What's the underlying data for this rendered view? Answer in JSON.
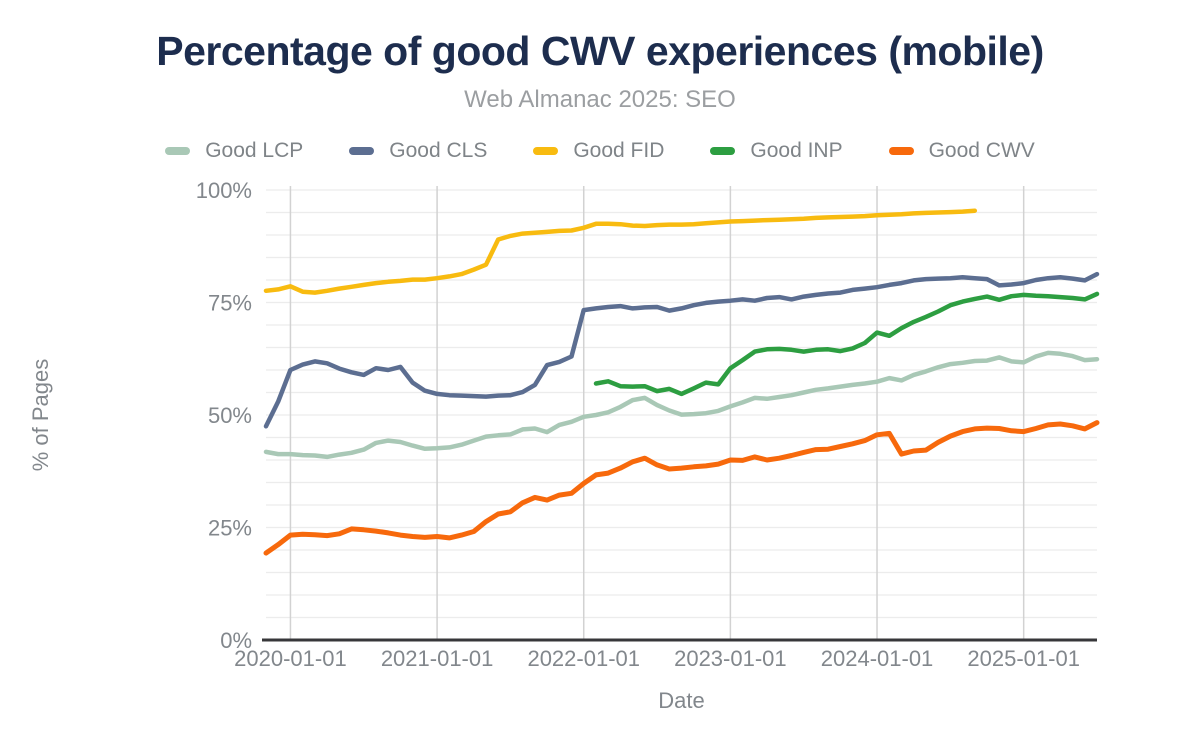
{
  "chart_data": {
    "type": "line",
    "title": "Percentage of good CWV experiences (mobile)",
    "subtitle": "Web Almanac 2025: SEO",
    "xlabel": "Date",
    "ylabel": "% of Pages",
    "ylim": [
      0,
      100
    ],
    "y_ticks": [
      {
        "value": 0,
        "label": "0%"
      },
      {
        "value": 25,
        "label": "25%"
      },
      {
        "value": 50,
        "label": "50%"
      },
      {
        "value": 75,
        "label": "75%"
      },
      {
        "value": 100,
        "label": "100%"
      }
    ],
    "y_minor_gridline_step": 5,
    "x_ticks": [
      {
        "month": "2020-01",
        "label": "2020-01-01"
      },
      {
        "month": "2021-01",
        "label": "2021-01-01"
      },
      {
        "month": "2022-01",
        "label": "2022-01-01"
      },
      {
        "month": "2023-01",
        "label": "2023-01-01"
      },
      {
        "month": "2024-01",
        "label": "2024-01-01"
      },
      {
        "month": "2025-01",
        "label": "2025-01-01"
      }
    ],
    "legend_position": "top",
    "grid": true,
    "months": [
      "2019-11",
      "2019-12",
      "2020-01",
      "2020-02",
      "2020-03",
      "2020-04",
      "2020-05",
      "2020-06",
      "2020-07",
      "2020-08",
      "2020-09",
      "2020-10",
      "2020-11",
      "2020-12",
      "2021-01",
      "2021-02",
      "2021-03",
      "2021-04",
      "2021-05",
      "2021-06",
      "2021-07",
      "2021-08",
      "2021-09",
      "2021-10",
      "2021-11",
      "2021-12",
      "2022-01",
      "2022-02",
      "2022-03",
      "2022-04",
      "2022-05",
      "2022-06",
      "2022-07",
      "2022-08",
      "2022-09",
      "2022-10",
      "2022-11",
      "2022-12",
      "2023-01",
      "2023-02",
      "2023-03",
      "2023-04",
      "2023-05",
      "2023-06",
      "2023-07",
      "2023-08",
      "2023-09",
      "2023-10",
      "2023-11",
      "2023-12",
      "2024-01",
      "2024-02",
      "2024-03",
      "2024-04",
      "2024-05",
      "2024-06",
      "2024-07",
      "2024-08",
      "2024-09",
      "2024-10",
      "2024-11",
      "2024-12",
      "2025-01",
      "2025-02",
      "2025-03",
      "2025-04",
      "2025-05",
      "2025-06",
      "2025-07"
    ],
    "series": [
      {
        "name": "Good LCP",
        "color": "#a9c8b6",
        "values": [
          41.8,
          41.3,
          41.3,
          41.1,
          41.0,
          40.7,
          41.2,
          41.6,
          42.3,
          43.8,
          44.3,
          44.0,
          43.2,
          42.5,
          42.6,
          42.8,
          43.4,
          44.3,
          45.2,
          45.5,
          45.7,
          46.8,
          47.0,
          46.2,
          47.8,
          48.5,
          49.6,
          50.0,
          50.6,
          51.8,
          53.3,
          53.8,
          52.2,
          51.0,
          50.1,
          50.2,
          50.4,
          50.9,
          51.9,
          52.8,
          53.8,
          53.6,
          54.0,
          54.4,
          55.0,
          55.6,
          55.9,
          56.3,
          56.7,
          57.0,
          57.4,
          58.2,
          57.7,
          58.9,
          59.7,
          60.6,
          61.3,
          61.6,
          62.0,
          62.1,
          62.8,
          61.9,
          61.7,
          63.0,
          63.8,
          63.6,
          63.1,
          62.2,
          62.4
        ]
      },
      {
        "name": "Good CLS",
        "color": "#5c6e91",
        "values": [
          47.5,
          53.0,
          60.0,
          61.2,
          61.9,
          61.5,
          60.3,
          59.5,
          58.9,
          60.4,
          60.0,
          60.7,
          57.2,
          55.4,
          54.7,
          54.4,
          54.3,
          54.2,
          54.1,
          54.3,
          54.4,
          55.1,
          56.7,
          61.1,
          61.8,
          63.0,
          73.3,
          73.7,
          74.0,
          74.2,
          73.7,
          73.9,
          74.0,
          73.2,
          73.7,
          74.4,
          74.9,
          75.2,
          75.4,
          75.7,
          75.4,
          76.0,
          76.2,
          75.7,
          76.3,
          76.7,
          77.0,
          77.2,
          77.8,
          78.1,
          78.4,
          78.9,
          79.3,
          79.9,
          80.2,
          80.3,
          80.4,
          80.6,
          80.4,
          80.2,
          78.8,
          79.0,
          79.3,
          80.0,
          80.4,
          80.6,
          80.3,
          79.9,
          81.3
        ]
      },
      {
        "name": "Good FID",
        "color": "#f8bb10",
        "values": [
          77.6,
          77.9,
          78.6,
          77.4,
          77.2,
          77.6,
          78.1,
          78.5,
          78.9,
          79.3,
          79.6,
          79.8,
          80.1,
          80.1,
          80.4,
          80.8,
          81.3,
          82.3,
          83.4,
          89.0,
          89.8,
          90.3,
          90.5,
          90.7,
          90.9,
          91.0,
          91.6,
          92.5,
          92.5,
          92.4,
          92.1,
          92.0,
          92.2,
          92.3,
          92.3,
          92.4,
          92.6,
          92.8,
          93.0,
          93.1,
          93.2,
          93.3,
          93.4,
          93.5,
          93.6,
          93.8,
          93.9,
          94.0,
          94.1,
          94.2,
          94.4,
          94.5,
          94.6,
          94.8,
          94.9,
          95.0,
          95.1,
          95.2,
          95.4,
          null,
          null,
          null,
          null,
          null,
          null,
          null,
          null,
          null,
          null
        ]
      },
      {
        "name": "Good INP",
        "color": "#2d9e41",
        "values": [
          null,
          null,
          null,
          null,
          null,
          null,
          null,
          null,
          null,
          null,
          null,
          null,
          null,
          null,
          null,
          null,
          null,
          null,
          null,
          null,
          null,
          null,
          null,
          null,
          null,
          null,
          null,
          57.0,
          57.5,
          56.4,
          56.3,
          56.4,
          55.3,
          55.8,
          54.7,
          55.9,
          57.2,
          56.8,
          60.4,
          62.2,
          64.1,
          64.6,
          64.7,
          64.5,
          64.1,
          64.5,
          64.6,
          64.2,
          64.8,
          66.0,
          68.3,
          67.6,
          69.3,
          70.7,
          71.8,
          73.0,
          74.4,
          75.2,
          75.8,
          76.3,
          75.6,
          76.4,
          76.7,
          76.5,
          76.4,
          76.2,
          76.0,
          75.7,
          76.9
        ]
      },
      {
        "name": "Good CWV",
        "color": "#f7690c",
        "values": [
          19.3,
          21.2,
          23.3,
          23.5,
          23.4,
          23.2,
          23.6,
          24.7,
          24.5,
          24.2,
          23.8,
          23.3,
          23.0,
          22.8,
          23.0,
          22.7,
          23.3,
          24.1,
          26.3,
          28.0,
          28.5,
          30.5,
          31.7,
          31.1,
          32.2,
          32.6,
          34.8,
          36.7,
          37.1,
          38.2,
          39.6,
          40.4,
          38.9,
          38.0,
          38.2,
          38.5,
          38.7,
          39.1,
          40.0,
          39.9,
          40.7,
          40.0,
          40.4,
          41.0,
          41.7,
          42.3,
          42.4,
          43.0,
          43.6,
          44.3,
          45.6,
          45.9,
          41.3,
          42.0,
          42.2,
          43.9,
          45.3,
          46.3,
          46.9,
          47.1,
          47.0,
          46.5,
          46.3,
          47.0,
          47.8,
          48.0,
          47.6,
          46.9,
          48.3
        ]
      }
    ],
    "colors": {
      "title": "#1d2d4e",
      "subtitle": "#9b9ea1",
      "axis_text": "#82878c",
      "minor_gridline": "#ececec",
      "year_gridline": "#d2d2d2",
      "axis_line": "#37373a",
      "background": "#ffffff"
    }
  }
}
